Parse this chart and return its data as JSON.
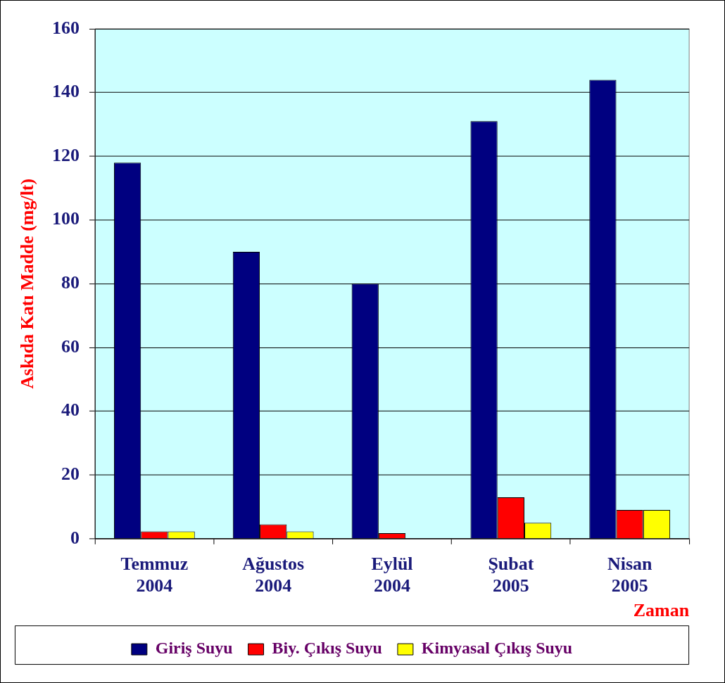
{
  "chart_data": {
    "type": "bar",
    "ylabel": "Askıda Katı Madde (mg/lt)",
    "xlabel": "Zaman",
    "categories": [
      "Temmuz 2004",
      "Ağustos 2004",
      "Eylül 2004",
      "Şubat 2005",
      "Nisan 2005"
    ],
    "series": [
      {
        "name": "Giriş Suyu",
        "color": "#000080",
        "values": [
          118,
          90,
          80,
          131,
          144
        ]
      },
      {
        "name": "Biy. Çıkış Suyu",
        "color": "#ff0000",
        "values": [
          2.3,
          4.5,
          1.7,
          13,
          9
        ]
      },
      {
        "name": "Kimyasal Çıkış Suyu",
        "color": "#ffff00",
        "values": [
          2.3,
          2.3,
          null,
          5,
          9
        ]
      }
    ],
    "ylim": [
      0,
      160
    ],
    "yticks": [
      0,
      20,
      40,
      60,
      80,
      100,
      120,
      140,
      160
    ],
    "grid": "y",
    "legend": "bottom"
  }
}
